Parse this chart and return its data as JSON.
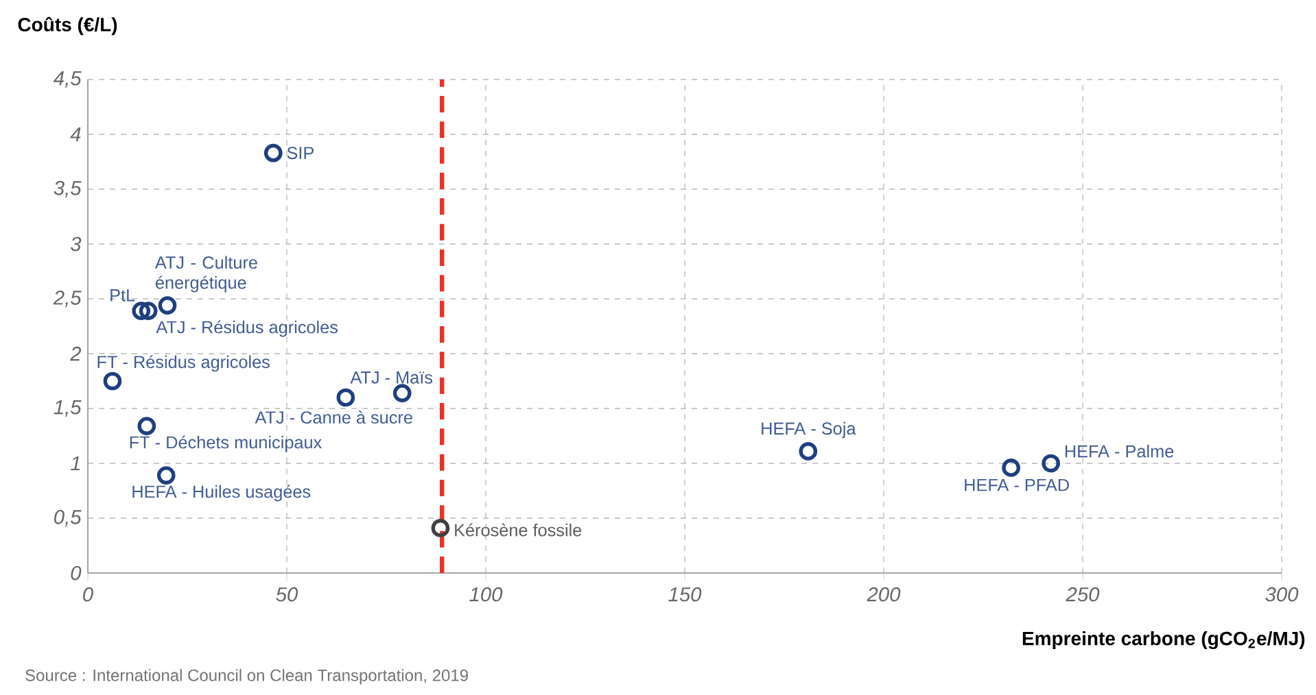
{
  "chart_data": {
    "type": "scatter",
    "xlabel": "Empreinte carbone (gCO$_{2}$e/MJ)",
    "ylabel": "Coûts (€/L)",
    "xlim": [
      0,
      300
    ],
    "xticks": [
      0,
      50,
      100,
      150,
      200,
      250,
      300
    ],
    "ylim": [
      0,
      4.5
    ],
    "yticks": [
      0,
      {
        "value": 0.5,
        "label": "0,5"
      },
      1,
      {
        "value": 1.5,
        "label": "1,5"
      },
      2,
      {
        "value": 2.5,
        "label": "2,5"
      },
      3,
      {
        "value": 3.5,
        "label": "3,5"
      },
      4,
      {
        "value": 4.5,
        "label": "4,5"
      }
    ],
    "grid": true,
    "marker": "circle",
    "series": [
      {
        "name": "SIP",
        "color": "#1f3f7f",
        "x": [
          46.6
        ],
        "values": [
          3.83
        ]
      },
      {
        "name": "PtL",
        "color": "#1f3f7f",
        "x": [
          13.4
        ],
        "values": [
          2.39
        ]
      },
      {
        "name": "ATJ - Résidus agricoles",
        "color": "#1f3f7f",
        "x": [
          15.2
        ],
        "values": [
          2.39
        ]
      },
      {
        "name": "ATJ - Culture énergétique",
        "color": "#1f3f7f",
        "x": [
          20
        ],
        "values": [
          2.44
        ]
      },
      {
        "name": "FT - Résidus agricoles",
        "color": "#1f3f7f",
        "x": [
          6.2
        ],
        "values": [
          1.75
        ]
      },
      {
        "name": "FT - Déchets municipaux",
        "color": "#1f3f7f",
        "x": [
          14.8
        ],
        "values": [
          1.34
        ]
      },
      {
        "name": "HEFA - Huiles usagées",
        "color": "#1f3f7f",
        "x": [
          19.7
        ],
        "values": [
          0.89
        ]
      },
      {
        "name": "ATJ - Canne à sucre",
        "color": "#1f3f7f",
        "x": [
          64.8
        ],
        "values": [
          1.6
        ]
      },
      {
        "name": "ATJ - Maïs",
        "color": "#1f3f7f",
        "x": [
          79
        ],
        "values": [
          1.64
        ]
      },
      {
        "name": "Kérosène fossile",
        "color": "#404040",
        "x": [
          88.6
        ],
        "values": [
          0.41
        ]
      },
      {
        "name": "HEFA - Soja",
        "color": "#1f3f7f",
        "x": [
          181
        ],
        "values": [
          1.11
        ]
      },
      {
        "name": "HEFA - PFAD",
        "color": "#1f3f7f",
        "x": [
          232
        ],
        "values": [
          0.96
        ]
      },
      {
        "name": "HEFA - Palme",
        "color": "#1f3f7f",
        "x": [
          242
        ],
        "values": [
          1.0
        ]
      }
    ],
    "ref_lines": [
      {
        "axis": "x",
        "value": 89,
        "color": "#e8322a",
        "line_style": "dashed"
      }
    ],
    "annotations": [
      "Source : International Council on Clean Transportation, 2019"
    ]
  }
}
